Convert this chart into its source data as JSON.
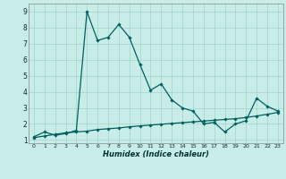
{
  "xlabel": "Humidex (Indice chaleur)",
  "background_color": "#c8ece8",
  "grid_color": "#a8d8d0",
  "line_color": "#006060",
  "xlim": [
    -0.5,
    23.5
  ],
  "ylim": [
    0.8,
    9.5
  ],
  "xtick_labels": [
    "0",
    "1",
    "2",
    "3",
    "4",
    "5",
    "6",
    "7",
    "8",
    "9",
    "10",
    "11",
    "12",
    "13",
    "14",
    "15",
    "16",
    "17",
    "18",
    "19",
    "20",
    "21",
    "22",
    "23"
  ],
  "ytick_labels": [
    "1",
    "2",
    "3",
    "4",
    "5",
    "6",
    "7",
    "8",
    "9"
  ],
  "series1_x": [
    0,
    1,
    2,
    3,
    4,
    5,
    6,
    7,
    8,
    9,
    10,
    11,
    12,
    13,
    14,
    15,
    16,
    17,
    18,
    19,
    20,
    21,
    22,
    23
  ],
  "series1_y": [
    1.2,
    1.5,
    1.3,
    1.4,
    1.6,
    9.0,
    7.2,
    7.4,
    8.2,
    7.4,
    5.7,
    4.1,
    4.5,
    3.5,
    3.0,
    2.8,
    2.0,
    2.1,
    1.5,
    2.0,
    2.2,
    3.6,
    3.1,
    2.8
  ],
  "series2_x": [
    0,
    1,
    2,
    3,
    4,
    5,
    6,
    7,
    8,
    9,
    10,
    11,
    12,
    13,
    14,
    15,
    16,
    17,
    18,
    19,
    20,
    21,
    22,
    23
  ],
  "series2_y": [
    1.15,
    1.25,
    1.35,
    1.45,
    1.5,
    1.55,
    1.65,
    1.7,
    1.75,
    1.82,
    1.88,
    1.93,
    1.98,
    2.03,
    2.08,
    2.13,
    2.18,
    2.23,
    2.28,
    2.33,
    2.4,
    2.5,
    2.6,
    2.72
  ]
}
